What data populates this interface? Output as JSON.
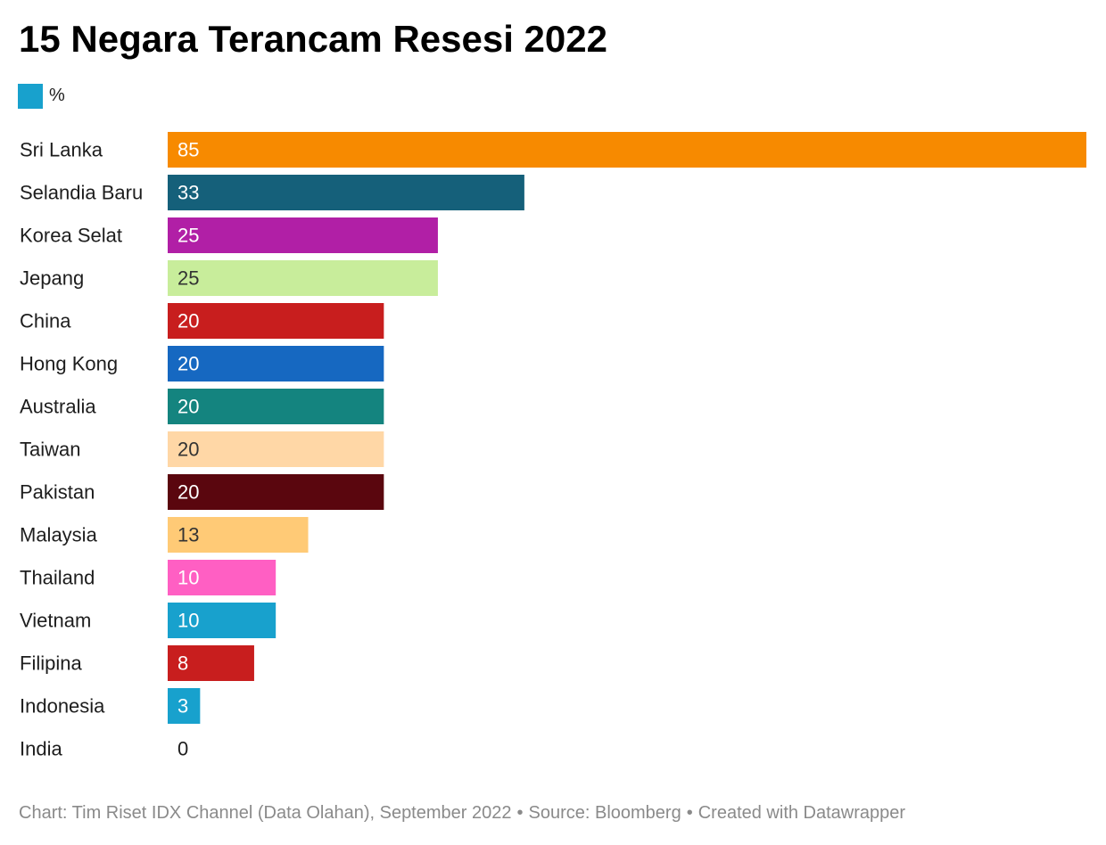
{
  "chart_data": {
    "type": "bar",
    "orientation": "horizontal",
    "title": "15 Negara Terancam Resesi 2022",
    "legend": [
      {
        "name": "%",
        "color": "#18a1cd"
      }
    ],
    "categories": [
      "Sri Lanka",
      "Selandia Baru",
      "Korea Selat",
      "Jepang",
      "China",
      "Hong Kong",
      "Australia",
      "Taiwan",
      "Pakistan",
      "Malaysia",
      "Thailand",
      "Vietnam",
      "Filipina",
      "Indonesia",
      "India"
    ],
    "series": [
      {
        "name": "%",
        "values": [
          85,
          33,
          25,
          25,
          20,
          20,
          20,
          20,
          20,
          13,
          10,
          10,
          8,
          3,
          0
        ]
      }
    ],
    "bar_colors": [
      "#f78a00",
      "#15607a",
      "#b11fa6",
      "#c8ed9b",
      "#c81e1e",
      "#1668c1",
      "#14847f",
      "#ffd7a6",
      "#5a060e",
      "#ffca76",
      "#ff5fc3",
      "#18a1cd",
      "#c81e1e",
      "#18a1cd",
      "#18a1cd"
    ],
    "label_colors": [
      "#ffffff",
      "#ffffff",
      "#ffffff",
      "#333333",
      "#ffffff",
      "#ffffff",
      "#ffffff",
      "#333333",
      "#ffffff",
      "#333333",
      "#ffffff",
      "#ffffff",
      "#ffffff",
      "#ffffff",
      "#1d1d1d"
    ],
    "xlim": [
      0,
      85
    ],
    "grid": false
  },
  "footer": {
    "chart_credit": "Chart: Tim Riset IDX Channel (Data Olahan), September 2022",
    "source": "Source: Bloomberg",
    "created_with": "Created with Datawrapper",
    "separator": "•"
  }
}
